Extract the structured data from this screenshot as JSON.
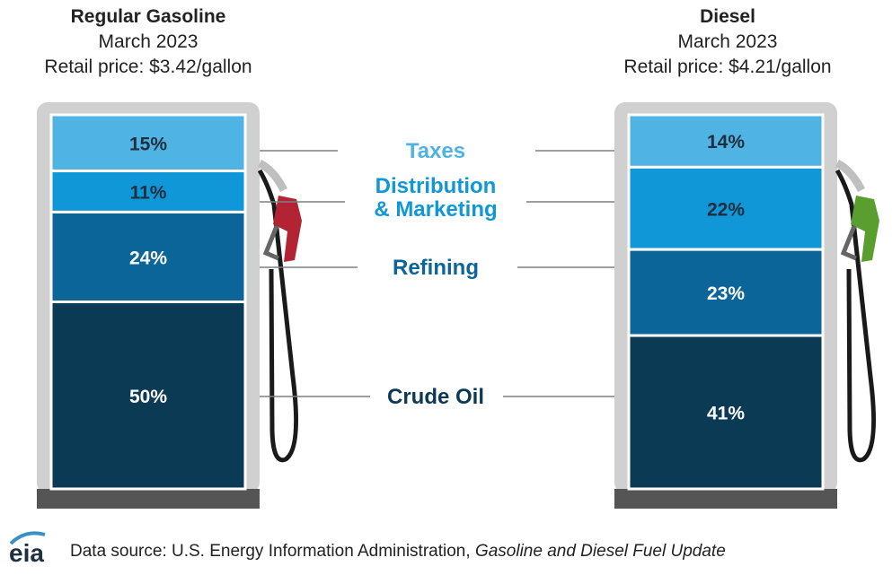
{
  "chart_data": {
    "type": "stacked-bar",
    "components": [
      "Taxes",
      "Distribution & Marketing",
      "Refining",
      "Crude Oil"
    ],
    "component_labels": [
      {
        "key": "taxes",
        "lines": [
          "Taxes"
        ],
        "color": "#4FB3E3"
      },
      {
        "key": "distribution",
        "lines": [
          "Distribution",
          "& Marketing"
        ],
        "color": "#0F97D8"
      },
      {
        "key": "refining",
        "lines": [
          "Refining"
        ],
        "color": "#0C6598"
      },
      {
        "key": "crude",
        "lines": [
          "Crude Oil"
        ],
        "color": "#0B3A55"
      }
    ],
    "series": [
      {
        "name": "Regular Gasoline",
        "period": "March 2023",
        "price_label": "Retail price: $3.42/gallon",
        "values": [
          15,
          11,
          24,
          50
        ],
        "labels": [
          "15%",
          "11%",
          "24%",
          "50%"
        ],
        "nozzle_color": "#B22334"
      },
      {
        "name": "Diesel",
        "period": "March 2023",
        "price_label": "Retail price: $4.21/gallon",
        "values": [
          14,
          22,
          23,
          41
        ],
        "labels": [
          "14%",
          "22%",
          "23%",
          "41%"
        ],
        "nozzle_color": "#5A9E2F"
      }
    ],
    "segment_colors": [
      "#4FB3E3",
      "#0F97D8",
      "#0C6598",
      "#0B3A55"
    ],
    "label_text_colors": [
      "#1F2F3D",
      "#1F2F3D",
      "#ffffff",
      "#ffffff"
    ]
  },
  "footer": {
    "logo_text": "eia",
    "source_prefix": "Data source: U.S. Energy Information Administration, ",
    "source_title": "Gasoline and Diesel Fuel Update"
  }
}
